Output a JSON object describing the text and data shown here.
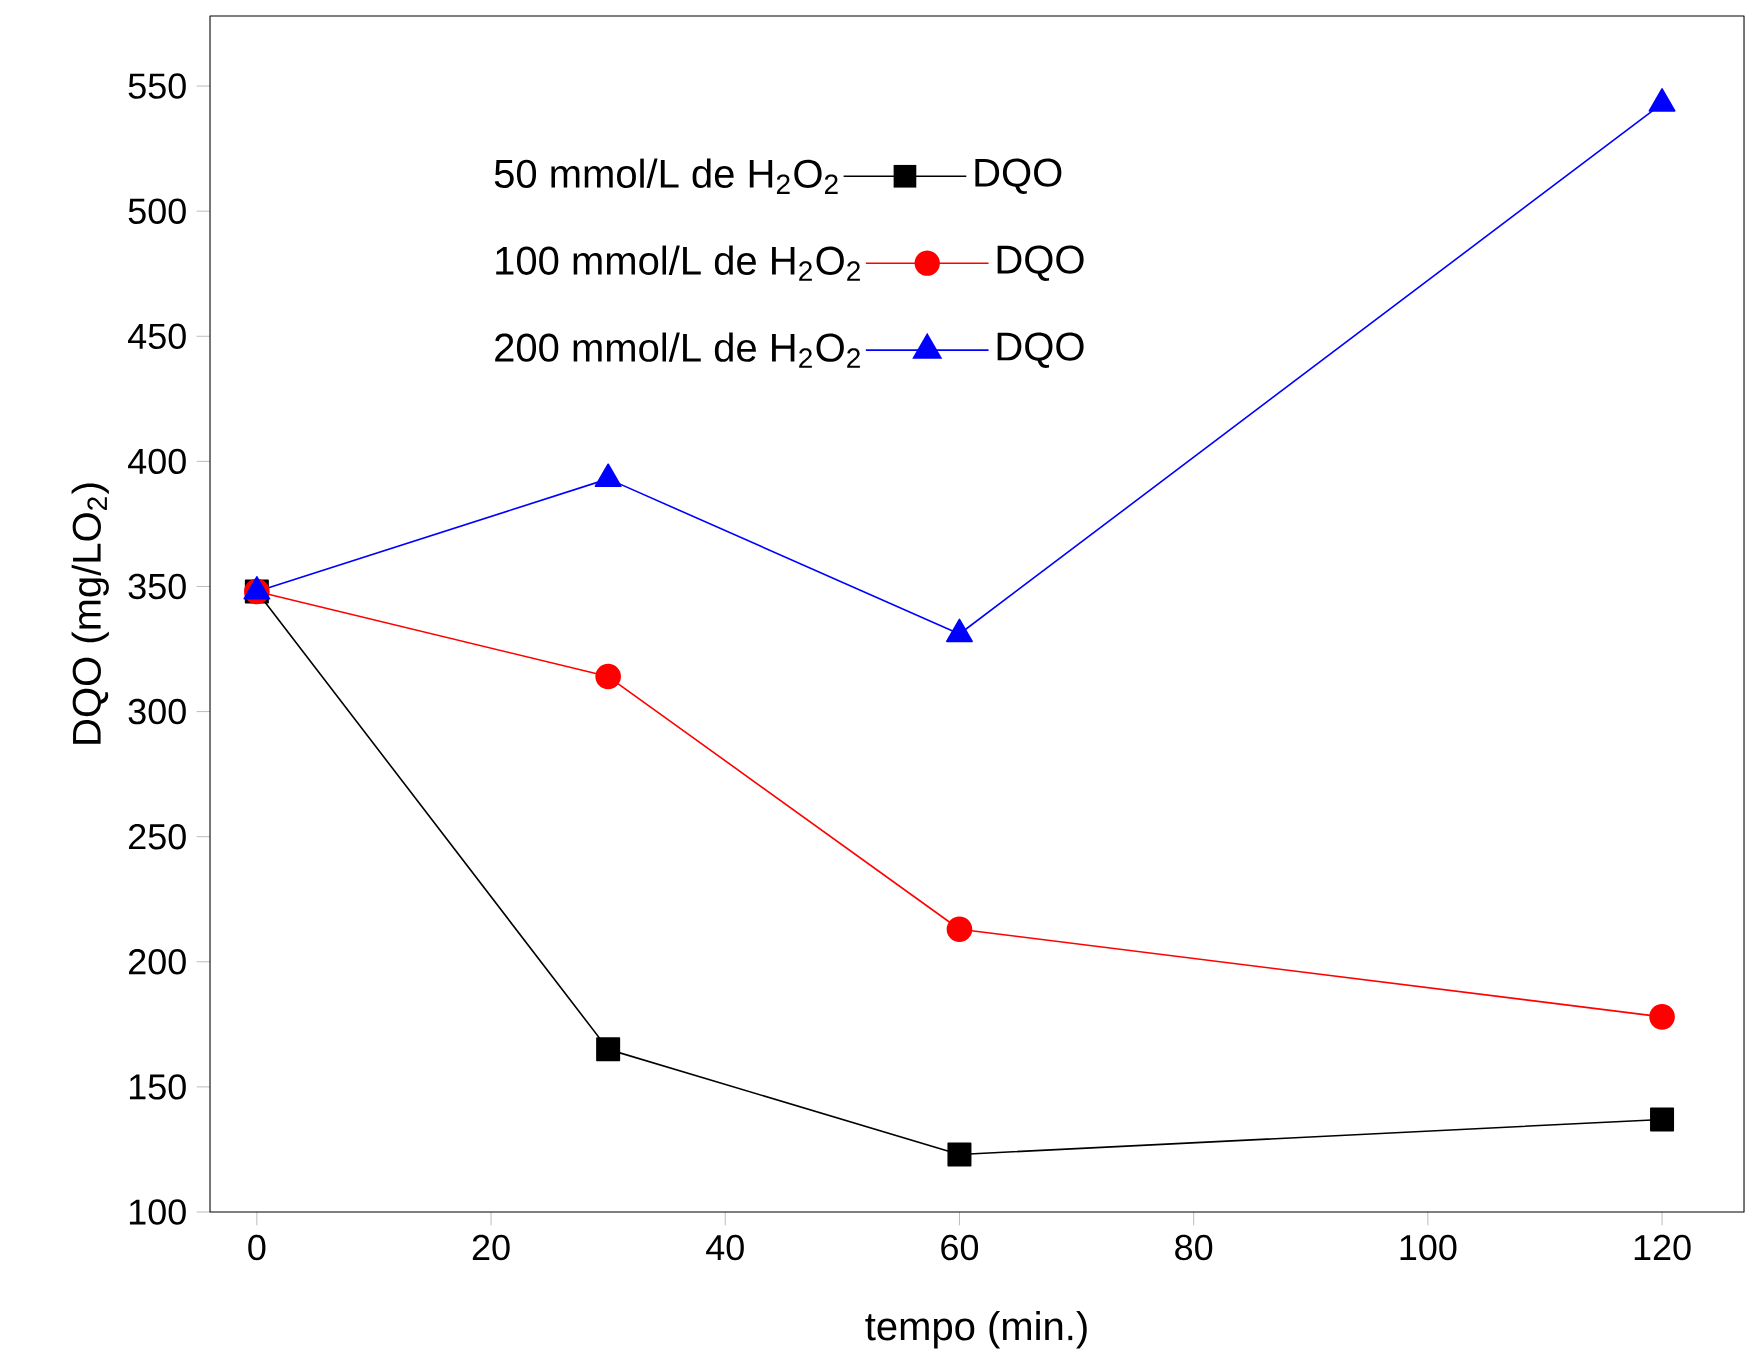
{
  "chart_data": {
    "type": "line",
    "xlabel": "tempo (min.)",
    "ylabel": "DQO (mg/LO$_{2}$)",
    "x": [
      0,
      30,
      60,
      120
    ],
    "series": [
      {
        "name": "50 mmol/L de H$_{2}$O$_{2}$",
        "color": "#000000",
        "marker": "square",
        "values": [
          348,
          165,
          123,
          137
        ]
      },
      {
        "name": "100 mmol/L de H$_{2}$O$_{2}$",
        "color": "#ff0000",
        "marker": "circle",
        "values": [
          348,
          314,
          213,
          178
        ]
      },
      {
        "name": "200 mmol/L de H$_{2}$O$_{2}$",
        "color": "#0000ff",
        "marker": "triangle",
        "values": [
          348,
          393,
          331,
          543
        ]
      }
    ],
    "annotations": [
      "DQO",
      "DQO",
      "DQO"
    ],
    "xlim": [
      -4,
      127
    ],
    "ylim": [
      100,
      578
    ],
    "xticks": [
      0,
      20,
      40,
      60,
      80,
      100,
      120
    ],
    "yticks": [
      100,
      150,
      200,
      250,
      300,
      350,
      400,
      450,
      500,
      550
    ],
    "legend": "top",
    "grid": false,
    "line_style": "solid"
  }
}
